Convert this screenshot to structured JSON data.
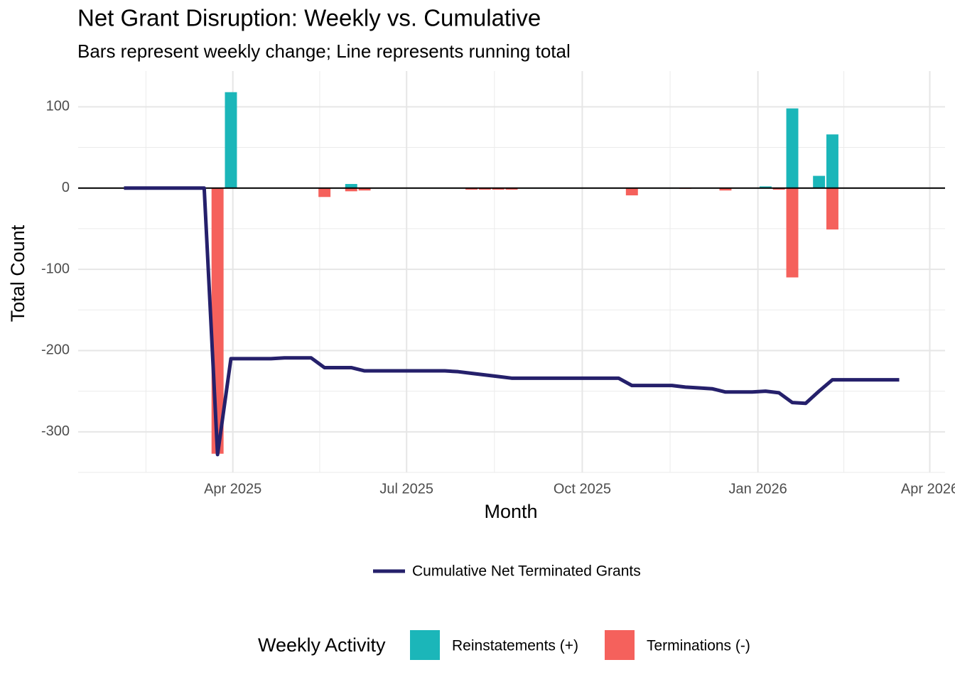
{
  "chart_data": {
    "type": "combo",
    "title": "Net Grant Disruption: Weekly vs. Cumulative",
    "subtitle": "Bars represent weekly change; Line represents running total",
    "x_label": "Month",
    "y_label": "Total Count",
    "legend_title": "Weekly Activity",
    "x": [
      "2025-02-03",
      "2025-02-10",
      "2025-02-17",
      "2025-02-24",
      "2025-03-03",
      "2025-03-10",
      "2025-03-17",
      "2025-03-24",
      "2025-03-31",
      "2025-04-07",
      "2025-04-14",
      "2025-04-21",
      "2025-04-28",
      "2025-05-05",
      "2025-05-12",
      "2025-05-19",
      "2025-05-26",
      "2025-06-02",
      "2025-06-09",
      "2025-06-16",
      "2025-06-23",
      "2025-06-30",
      "2025-07-07",
      "2025-07-14",
      "2025-07-21",
      "2025-07-28",
      "2025-08-04",
      "2025-08-11",
      "2025-08-18",
      "2025-08-25",
      "2025-09-01",
      "2025-09-08",
      "2025-09-15",
      "2025-09-22",
      "2025-09-29",
      "2025-10-06",
      "2025-10-13",
      "2025-10-20",
      "2025-10-27",
      "2025-11-03",
      "2025-11-10",
      "2025-11-17",
      "2025-11-24",
      "2025-12-01",
      "2025-12-08",
      "2025-12-15",
      "2025-12-22",
      "2025-12-29",
      "2026-01-05",
      "2026-01-12",
      "2026-01-19",
      "2026-01-26",
      "2026-02-02",
      "2026-02-09",
      "2026-02-16",
      "2026-02-23",
      "2026-03-02",
      "2026-03-09",
      "2026-03-16"
    ],
    "series": [
      {
        "name": "Cumulative Net Terminated Grants",
        "type": "line",
        "color": "#25206b",
        "values": [
          0,
          0,
          0,
          0,
          0,
          0,
          0,
          -328,
          -210,
          -210,
          -210,
          -210,
          -209,
          -209,
          -209,
          -221,
          -221,
          -221,
          -225,
          -225,
          -225,
          -225,
          -225,
          -225,
          -225,
          -226,
          -228,
          -230,
          -232,
          -234,
          -234,
          -234,
          -234,
          -234,
          -234,
          -234,
          -234,
          -234,
          -243,
          -243,
          -243,
          -243,
          -245,
          -246,
          -247,
          -251,
          -251,
          -251,
          -250,
          -252,
          -264,
          -265,
          -250,
          -236,
          -236,
          -236,
          -236,
          -236,
          -236
        ]
      },
      {
        "name": "Reinstatements (+)",
        "type": "bar",
        "color": "#1bb6b9",
        "values": [
          null,
          null,
          null,
          null,
          null,
          null,
          null,
          null,
          118,
          null,
          null,
          null,
          null,
          null,
          null,
          null,
          null,
          5,
          null,
          null,
          null,
          null,
          null,
          null,
          null,
          null,
          null,
          null,
          null,
          null,
          null,
          null,
          null,
          null,
          null,
          null,
          null,
          null,
          null,
          null,
          null,
          null,
          null,
          null,
          null,
          null,
          null,
          null,
          2,
          null,
          98,
          null,
          15,
          66,
          null,
          null,
          null,
          null,
          null
        ]
      },
      {
        "name": "Terminations (-)",
        "type": "bar",
        "color": "#f5615c",
        "values": [
          null,
          null,
          null,
          null,
          null,
          null,
          null,
          -327,
          null,
          null,
          null,
          null,
          null,
          null,
          null,
          -11,
          null,
          -4,
          -3,
          null,
          null,
          null,
          null,
          null,
          null,
          null,
          -2,
          -2,
          -2,
          -2,
          null,
          null,
          null,
          null,
          null,
          null,
          null,
          null,
          -9,
          null,
          null,
          null,
          -1,
          null,
          null,
          -3,
          null,
          null,
          null,
          -2,
          -110,
          null,
          null,
          -51,
          null,
          null,
          null,
          null,
          null
        ]
      }
    ],
    "xlim": [
      "2025-01-10",
      "2026-04-09"
    ],
    "xticks": [
      {
        "value": "2025-04",
        "label": "Apr 2025"
      },
      {
        "value": "2025-07",
        "label": "Jul 2025"
      },
      {
        "value": "2025-10",
        "label": "Oct 2025"
      },
      {
        "value": "2026-01",
        "label": "Jan 2026"
      },
      {
        "value": "2026-04",
        "label": "Apr 2026"
      }
    ],
    "ylim": [
      -350,
      144
    ],
    "yticks": [
      -300,
      -200,
      -100,
      0,
      100
    ],
    "reference_line": 0,
    "grid": true
  }
}
